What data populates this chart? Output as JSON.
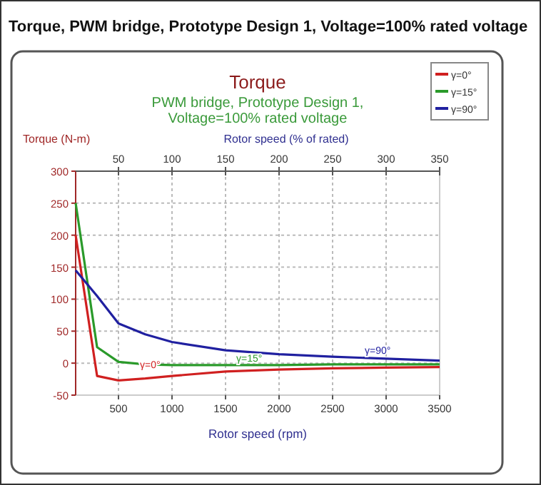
{
  "chart_data": {
    "type": "line",
    "title": "Torque",
    "subtitle": "PWM bridge, Prototype Design 1, Voltage=100% rated voltage",
    "xlabel": "Rotor speed (rpm)",
    "x2label": "Rotor speed (% of rated)",
    "ylabel": "Torque (N-m)",
    "annotations": [
      "Torque, PWM bridge, Prototype Design 1, Voltage=100% rated voltage",
      {
        "text": "γ=0°",
        "x": 700,
        "y": -12
      },
      {
        "text": "γ=15°",
        "x": 1600,
        "y": -2
      },
      {
        "text": "γ=90°",
        "x": 2800,
        "y": 10
      }
    ],
    "x": [
      100,
      300,
      500,
      750,
      1000,
      1500,
      2000,
      2500,
      3000,
      3500
    ],
    "series": [
      {
        "name": "γ=0°",
        "color": "#d02020",
        "values": [
          200,
          -20,
          -27,
          -24,
          -20,
          -13,
          -10,
          -8,
          -7,
          -6
        ]
      },
      {
        "name": "γ=15°",
        "color": "#2a9a2a",
        "values": [
          250,
          25,
          2,
          -2,
          -3,
          -3,
          -3,
          -2,
          -2,
          -2
        ]
      },
      {
        "name": "γ=90°",
        "color": "#2020a0",
        "values": [
          145,
          105,
          62,
          45,
          33,
          20,
          14,
          10,
          7,
          4
        ]
      }
    ],
    "xlim": [
      100,
      3500
    ],
    "xticks": [
      500,
      1000,
      1500,
      2000,
      2500,
      3000,
      3500
    ],
    "x2lim": [
      10,
      350
    ],
    "x2ticks": [
      50,
      100,
      150,
      200,
      250,
      300,
      350
    ],
    "ylim": [
      -50,
      300
    ],
    "yticks": [
      -50,
      0,
      50,
      100,
      150,
      200,
      250,
      300
    ],
    "grid": true,
    "legend": "top right",
    "marker": "none",
    "line_style": "solid"
  }
}
